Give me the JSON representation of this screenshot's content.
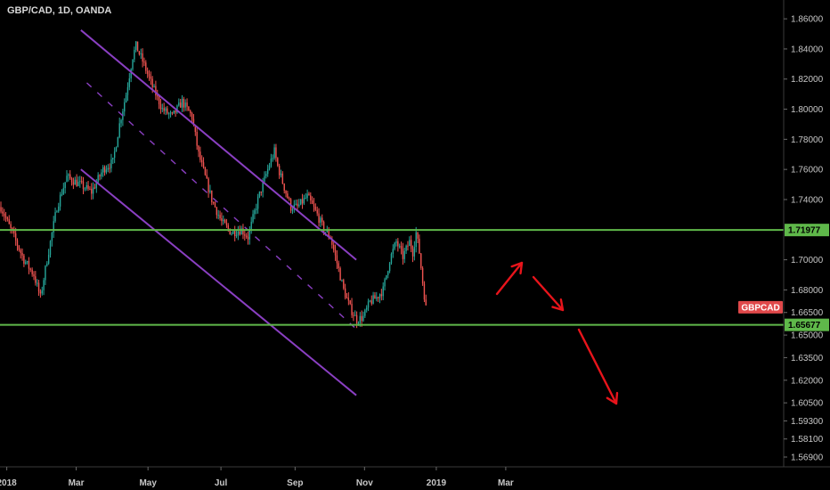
{
  "header": {
    "symbol_title": "GBP/CAD, 1D, OANDA"
  },
  "colors": {
    "background": "#000000",
    "up": "#26a69a",
    "down": "#ef5350",
    "channel": "#8a3fc2",
    "level": "#5fb84a",
    "arrow": "#e8141b",
    "tag": "#e0484a"
  },
  "chart_data": {
    "type": "candlestick",
    "y_axis": {
      "min": 1.5625,
      "max": 1.8725,
      "ticks": [
        "1.86000",
        "1.84000",
        "1.82000",
        "1.80000",
        "1.78000",
        "1.76000",
        "1.74000",
        "1.70000",
        "1.68000",
        "1.66500",
        "1.65000",
        "1.63500",
        "1.62000",
        "1.60500",
        "1.59300",
        "1.58100",
        "1.56900"
      ]
    },
    "x_axis": {
      "labels": [
        "2018",
        "Mar",
        "May",
        "Jul",
        "Sep",
        "Nov",
        "2019",
        "Mar"
      ]
    },
    "levels": [
      {
        "value": 1.71977,
        "label": "1.71977"
      },
      {
        "value": 1.65677,
        "label": "1.65677"
      }
    ],
    "price_tag": {
      "label": "GBPCAD",
      "value": 1.6685
    },
    "anchors": [
      [
        0,
        1.735
      ],
      [
        8,
        1.715
      ],
      [
        14,
        1.7
      ],
      [
        20,
        1.69
      ],
      [
        24,
        1.675
      ],
      [
        28,
        1.7
      ],
      [
        34,
        1.735
      ],
      [
        40,
        1.755
      ],
      [
        48,
        1.75
      ],
      [
        55,
        1.745
      ],
      [
        62,
        1.76
      ],
      [
        68,
        1.765
      ],
      [
        72,
        1.79
      ],
      [
        76,
        1.81
      ],
      [
        80,
        1.835
      ],
      [
        82,
        1.842
      ],
      [
        86,
        1.832
      ],
      [
        92,
        1.815
      ],
      [
        98,
        1.8
      ],
      [
        104,
        1.795
      ],
      [
        110,
        1.805
      ],
      [
        116,
        1.795
      ],
      [
        120,
        1.77
      ],
      [
        124,
        1.755
      ],
      [
        128,
        1.74
      ],
      [
        134,
        1.725
      ],
      [
        140,
        1.718
      ],
      [
        146,
        1.72
      ],
      [
        150,
        1.715
      ],
      [
        156,
        1.74
      ],
      [
        162,
        1.76
      ],
      [
        166,
        1.772
      ],
      [
        168,
        1.762
      ],
      [
        172,
        1.748
      ],
      [
        176,
        1.735
      ],
      [
        180,
        1.735
      ],
      [
        186,
        1.742
      ],
      [
        192,
        1.73
      ],
      [
        196,
        1.72
      ],
      [
        200,
        1.715
      ],
      [
        204,
        1.698
      ],
      [
        208,
        1.68
      ],
      [
        212,
        1.668
      ],
      [
        216,
        1.66
      ],
      [
        220,
        1.662
      ],
      [
        224,
        1.672
      ],
      [
        228,
        1.675
      ],
      [
        232,
        1.68
      ],
      [
        236,
        1.7
      ],
      [
        240,
        1.712
      ],
      [
        244,
        1.702
      ],
      [
        248,
        1.712
      ],
      [
        250,
        1.705
      ],
      [
        252,
        1.718
      ],
      [
        254,
        1.705
      ],
      [
        256,
        1.685
      ],
      [
        258,
        1.668
      ]
    ],
    "channel": {
      "upper": [
        [
          "2018-03-05",
          1.8525
        ],
        [
          "2018-10-25",
          1.7
        ]
      ],
      "middle": [
        [
          "2018-03-10",
          1.8175
        ],
        [
          "2018-10-25",
          1.654
        ]
      ],
      "lower": [
        [
          "2018-03-05",
          1.76
        ],
        [
          "2018-10-25",
          1.61
        ]
      ]
    },
    "annotations": [
      "arrow-up",
      "arrow-down",
      "arrow-down-long"
    ]
  }
}
